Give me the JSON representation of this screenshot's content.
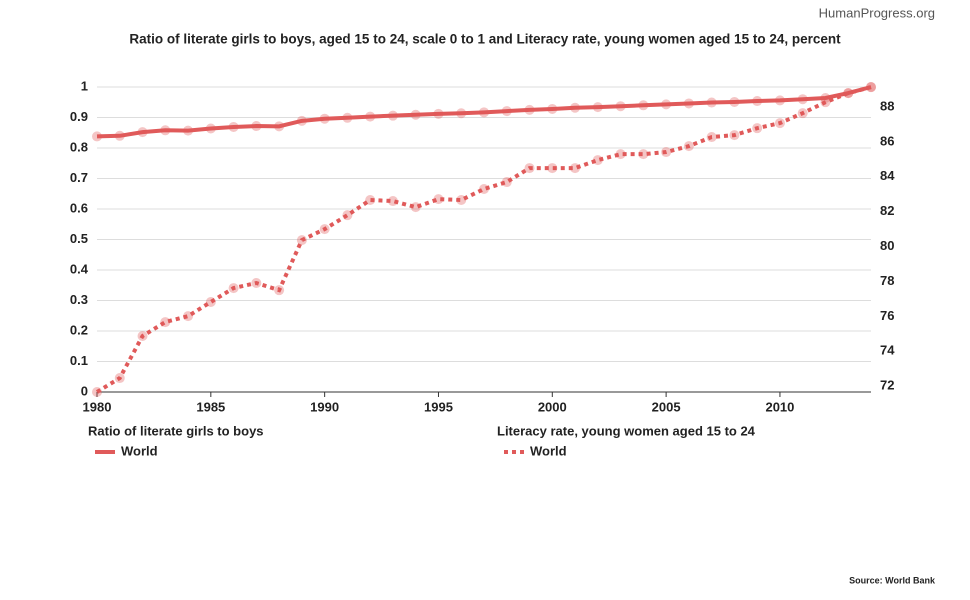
{
  "chart_data": {
    "type": "line",
    "title": "Ratio of literate girls to boys, aged 15 to 24, scale 0 to 1 and Literacy rate, young women aged 15 to 24, percent",
    "watermark": "HumanProgress.org",
    "source": "Source: World Bank",
    "x": [
      1980,
      1981,
      1982,
      1983,
      1984,
      1985,
      1986,
      1987,
      1988,
      1989,
      1990,
      1991,
      1992,
      1993,
      1994,
      1995,
      1996,
      1997,
      1998,
      1999,
      2000,
      2001,
      2002,
      2003,
      2004,
      2005,
      2006,
      2007,
      2008,
      2009,
      2010,
      2011,
      2012,
      2013,
      2014
    ],
    "xlim": [
      1980,
      2014
    ],
    "xticks": [
      1980,
      1985,
      1990,
      1995,
      2000,
      2005,
      2010
    ],
    "ylim": [
      0,
      1
    ],
    "yticks": [
      0,
      0.1,
      0.2,
      0.3,
      0.4,
      0.5,
      0.6,
      0.7,
      0.8,
      0.9,
      1
    ],
    "y2lim": [
      71.66,
      89.15
    ],
    "y2ticks": [
      72,
      74,
      76,
      78,
      80,
      82,
      84,
      86,
      88
    ],
    "grid": true,
    "series": [
      {
        "group": "Ratio of literate girls to boys",
        "name": "World",
        "color": "#e05a5a",
        "dashed": false,
        "values": [
          0.838,
          0.84,
          0.852,
          0.858,
          0.857,
          0.864,
          0.869,
          0.872,
          0.871,
          0.889,
          0.896,
          0.899,
          0.903,
          0.906,
          0.909,
          0.912,
          0.914,
          0.917,
          0.921,
          0.925,
          0.928,
          0.932,
          0.934,
          0.937,
          0.94,
          0.943,
          0.946,
          0.949,
          0.951,
          0.954,
          0.956,
          0.96,
          0.964,
          0.98,
          1.0
        ]
      },
      {
        "group": "Literacy rate, young women aged 15 to 24",
        "name": "World",
        "color": "#e05a5a",
        "dashed": true,
        "axis": "y2",
        "values": [
          71.66,
          72.46,
          74.87,
          75.67,
          76.01,
          76.82,
          77.62,
          77.91,
          77.5,
          80.37,
          81.0,
          81.8,
          82.67,
          82.61,
          82.26,
          82.72,
          82.67,
          83.3,
          83.7,
          84.5,
          84.5,
          84.5,
          84.96,
          85.3,
          85.3,
          85.42,
          85.76,
          86.28,
          86.39,
          86.79,
          87.08,
          87.65,
          88.28,
          88.8,
          89.14
        ]
      }
    ]
  }
}
